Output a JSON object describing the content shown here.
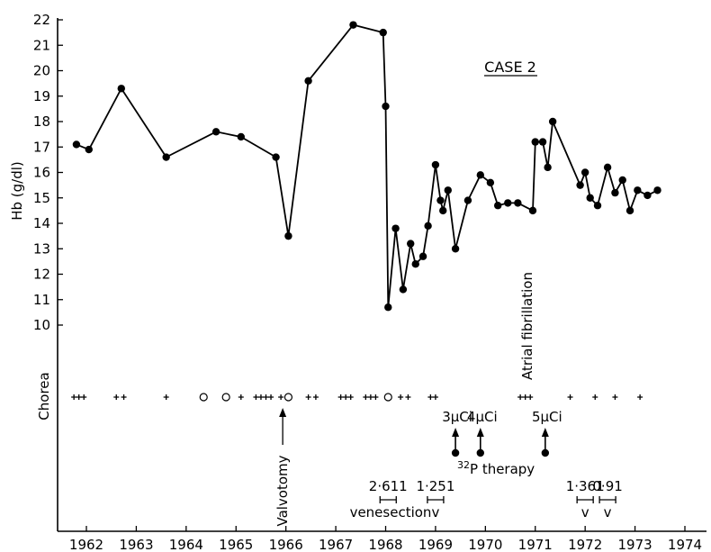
{
  "chart_data": {
    "type": "line",
    "title": "CASE 2",
    "ylabel": "Hb (g/dl)",
    "xlabel": "",
    "xlim": [
      1961.5,
      1974
    ],
    "ylim": [
      10,
      22
    ],
    "grid": false,
    "x_ticks": [
      "1962",
      "1963",
      "1964",
      "1965",
      "1966",
      "1967",
      "1968",
      "1969",
      "1970",
      "1971",
      "1972",
      "1973",
      "1974"
    ],
    "y_ticks": [
      "10",
      "11",
      "12",
      "13",
      "14",
      "15",
      "16",
      "17",
      "18",
      "19",
      "20",
      "21",
      "22"
    ],
    "series": [
      {
        "points": [
          [
            1961.8,
            17.1
          ],
          [
            1962.05,
            16.9
          ],
          [
            1962.7,
            19.3
          ],
          [
            1963.6,
            16.6
          ],
          [
            1964.6,
            17.6
          ],
          [
            1965.1,
            17.4
          ],
          [
            1965.8,
            16.6
          ],
          [
            1966.05,
            13.5
          ],
          [
            1966.45,
            19.6
          ],
          [
            1967.35,
            21.8
          ],
          [
            1967.95,
            21.5
          ],
          [
            1968.0,
            18.6
          ],
          [
            1968.05,
            10.7
          ],
          [
            1968.2,
            13.8
          ],
          [
            1968.35,
            11.4
          ],
          [
            1968.5,
            13.2
          ],
          [
            1968.6,
            12.4
          ],
          [
            1968.75,
            12.7
          ],
          [
            1968.85,
            13.9
          ],
          [
            1969.0,
            16.3
          ],
          [
            1969.1,
            14.9
          ],
          [
            1969.15,
            14.5
          ],
          [
            1969.25,
            15.3
          ],
          [
            1969.4,
            13.0
          ],
          [
            1969.65,
            14.9
          ],
          [
            1969.9,
            15.9
          ],
          [
            1970.1,
            15.6
          ],
          [
            1970.25,
            14.7
          ],
          [
            1970.45,
            14.8
          ],
          [
            1970.65,
            14.8
          ],
          [
            1970.95,
            14.5
          ],
          [
            1971.0,
            17.2
          ],
          [
            1971.15,
            17.2
          ],
          [
            1971.25,
            16.2
          ],
          [
            1971.35,
            18.0
          ],
          [
            1971.9,
            15.5
          ],
          [
            1972.0,
            16.0
          ],
          [
            1972.1,
            15.0
          ],
          [
            1972.25,
            14.7
          ],
          [
            1972.45,
            16.2
          ],
          [
            1972.6,
            15.2
          ],
          [
            1972.75,
            15.7
          ],
          [
            1972.9,
            14.5
          ],
          [
            1973.05,
            15.3
          ],
          [
            1973.25,
            15.1
          ],
          [
            1973.45,
            15.3
          ]
        ]
      }
    ],
    "chorea_label": "Chorea",
    "chorea_markers": [
      {
        "x": 1961.75,
        "type": "plus"
      },
      {
        "x": 1961.85,
        "type": "plus"
      },
      {
        "x": 1961.95,
        "type": "plus"
      },
      {
        "x": 1962.6,
        "type": "plus"
      },
      {
        "x": 1962.75,
        "type": "plus"
      },
      {
        "x": 1963.6,
        "type": "plus"
      },
      {
        "x": 1964.35,
        "type": "open"
      },
      {
        "x": 1964.8,
        "type": "open"
      },
      {
        "x": 1965.1,
        "type": "plus"
      },
      {
        "x": 1965.4,
        "type": "plus"
      },
      {
        "x": 1965.5,
        "type": "plus"
      },
      {
        "x": 1965.6,
        "type": "plus"
      },
      {
        "x": 1965.7,
        "type": "plus"
      },
      {
        "x": 1965.9,
        "type": "plus"
      },
      {
        "x": 1966.05,
        "type": "open"
      },
      {
        "x": 1966.45,
        "type": "plus"
      },
      {
        "x": 1966.6,
        "type": "plus"
      },
      {
        "x": 1967.1,
        "type": "plus"
      },
      {
        "x": 1967.2,
        "type": "plus"
      },
      {
        "x": 1967.3,
        "type": "plus"
      },
      {
        "x": 1967.6,
        "type": "plus"
      },
      {
        "x": 1967.7,
        "type": "plus"
      },
      {
        "x": 1967.8,
        "type": "plus"
      },
      {
        "x": 1968.05,
        "type": "open"
      },
      {
        "x": 1968.3,
        "type": "plus"
      },
      {
        "x": 1968.45,
        "type": "plus"
      },
      {
        "x": 1968.9,
        "type": "plus"
      },
      {
        "x": 1969.0,
        "type": "plus"
      },
      {
        "x": 1970.7,
        "type": "plus"
      },
      {
        "x": 1970.8,
        "type": "plus"
      },
      {
        "x": 1970.9,
        "type": "plus"
      },
      {
        "x": 1971.7,
        "type": "plus"
      },
      {
        "x": 1972.2,
        "type": "plus"
      },
      {
        "x": 1972.6,
        "type": "plus"
      },
      {
        "x": 1973.1,
        "type": "plus"
      }
    ],
    "annotations": {
      "valvotomy": {
        "text": "Valvotomy",
        "x": 1965.9
      },
      "atrial_fibrillation": {
        "text": "Atrial fibrillation",
        "x": 1970.9
      },
      "p32_therapy": {
        "sup": "32",
        "text": "P therapy"
      },
      "doses": [
        {
          "text": "3μCi",
          "x": 1969.4
        },
        {
          "text": "4μCi",
          "x": 1969.9
        },
        {
          "text": "5μCi",
          "x": 1971.2
        }
      ],
      "venesection": {
        "text": "venesection"
      },
      "venesection_marks": [
        {
          "label": "2·611",
          "x": 1968.05,
          "v": ""
        },
        {
          "label": "1·251",
          "x": 1969.0,
          "v": "v"
        },
        {
          "label": "1·361",
          "x": 1972.0,
          "v": "v"
        },
        {
          "label": "0·91",
          "x": 1972.45,
          "v": "v"
        }
      ]
    }
  }
}
